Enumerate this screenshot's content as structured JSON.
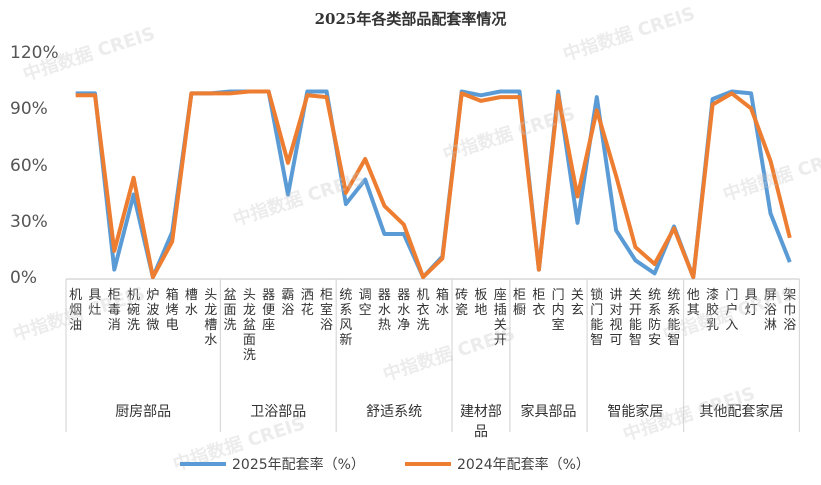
{
  "watermark": "中指数据 CREIS",
  "colors": {
    "series_2025": "#5B9BD5",
    "series_2024": "#ED7D31",
    "axis": "#D9D9D9"
  },
  "chart_data": {
    "type": "line",
    "title": "2025年各类部品配套率情况",
    "xlabel": "",
    "ylabel": "",
    "ylim": [
      0,
      120
    ],
    "yticks": [
      "0%",
      "30%",
      "60%",
      "90%",
      "120%"
    ],
    "ytick_values": [
      0,
      30,
      60,
      90,
      120
    ],
    "grid": false,
    "legend_position": "bottom",
    "groups": [
      {
        "name": "厨房部品",
        "categories": [
          "油烟机",
          "灶具",
          "消毒柜",
          "洗碗机",
          "微波炉",
          "电烤箱",
          "水槽",
          "水槽龙头"
        ]
      },
      {
        "name": "卫浴部品",
        "categories": [
          "洗面盆",
          "洗面盆龙头",
          "座便器",
          "浴霸",
          "花洒",
          "浴室柜"
        ]
      },
      {
        "name": "舒适系统",
        "categories": [
          "新风系统",
          "空调",
          "热水器",
          "净水器",
          "洗衣机",
          "冰箱"
        ]
      },
      {
        "name": "建材部品",
        "categories": [
          "瓷砖",
          "地板",
          "开关插座"
        ]
      },
      {
        "name": "家具部品",
        "categories": [
          "橱柜",
          "衣柜",
          "室内门",
          "玄关"
        ]
      },
      {
        "name": "智能家居",
        "categories": [
          "智能门锁",
          "可视对讲",
          "智能开关",
          "安防系统",
          "智能系统"
        ]
      },
      {
        "name": "其他配套家居",
        "categories": [
          "其他",
          "乳胶漆",
          "入户门",
          "灯具",
          "淋浴屏",
          "浴巾架"
        ]
      }
    ],
    "series": [
      {
        "name": "2025年配套率（%）",
        "values": [
          99,
          99,
          5,
          45,
          1,
          25,
          99,
          99,
          100,
          100,
          100,
          45,
          100,
          100,
          40,
          53,
          24,
          24,
          1,
          12,
          100,
          98,
          100,
          100,
          5,
          100,
          30,
          97,
          26,
          10,
          3,
          28,
          1,
          96,
          100,
          99,
          35,
          9
        ]
      },
      {
        "name": "2024年配套率（%）",
        "values": [
          98,
          98,
          15,
          54,
          1,
          20,
          99,
          99,
          99,
          100,
          100,
          62,
          98,
          97,
          46,
          64,
          39,
          29,
          1,
          11,
          99,
          95,
          97,
          97,
          5,
          98,
          44,
          90,
          55,
          17,
          8,
          27,
          1,
          93,
          99,
          91,
          63,
          22
        ]
      }
    ]
  }
}
